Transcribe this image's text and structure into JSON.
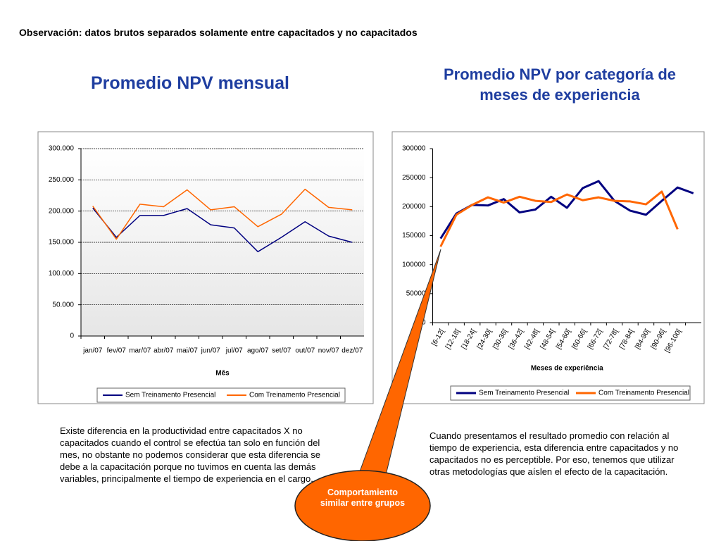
{
  "header": "Observación: datos brutos separados solamente entre capacitados y no capacitados",
  "chart_data": [
    {
      "type": "line",
      "title": "Promedio NPV mensual",
      "categories": [
        "jan/07",
        "fev/07",
        "mar/07",
        "abr/07",
        "mai/07",
        "jun/07",
        "jul/07",
        "ago/07",
        "set/07",
        "out/07",
        "nov/07",
        "dez/07"
      ],
      "series": [
        {
          "name": "Sem Treinamento Presencial",
          "color": "#000080",
          "values": [
            205000,
            158000,
            193000,
            193000,
            204000,
            178000,
            173000,
            135000,
            158000,
            183000,
            160000,
            150000
          ]
        },
        {
          "name": "Com Treinamento Presencial",
          "color": "#ff6600",
          "values": [
            208000,
            155000,
            211000,
            207000,
            234000,
            202000,
            207000,
            175000,
            195000,
            235000,
            206000,
            202000
          ]
        }
      ],
      "xlabel": "Mês",
      "ylim": [
        0,
        300000
      ],
      "yticks": [
        0,
        {
          "value": 50000,
          "label": "50.000"
        },
        {
          "value": 100000,
          "label": "100.000"
        },
        {
          "value": 150000,
          "label": "150.000"
        },
        {
          "value": 200000,
          "label": "200.000"
        },
        {
          "value": 250000,
          "label": "250.000"
        },
        {
          "value": 300000,
          "label": "300.000"
        }
      ],
      "grid": true,
      "legend": "bottom"
    },
    {
      "type": "line",
      "title": "Promedio NPV por categoría de meses de experiencia",
      "categories": [
        "[6-12[",
        "[12-18[",
        "[18-24[",
        "[24-30[",
        "[30-36[",
        "[36-42[",
        "[42-48[",
        "[48-54[",
        "[54-60[",
        "[60-66[",
        "[66-72[",
        "[72-78[",
        "[78-84[",
        "[84-90[",
        "[90-96[",
        "[96-100[",
        null
      ],
      "series": [
        {
          "name": "Sem Treinamento Presencial",
          "color": "#000080",
          "values": [
            145000,
            188000,
            203000,
            202000,
            213000,
            190000,
            195000,
            217000,
            198000,
            232000,
            244000,
            210000,
            193000,
            186000,
            210000,
            233000,
            223000
          ]
        },
        {
          "name": "Com Treinamento Presencial",
          "color": "#ff6600",
          "values": [
            131000,
            186000,
            203000,
            216000,
            207000,
            217000,
            210000,
            208000,
            221000,
            211000,
            216000,
            210000,
            209000,
            204000,
            226000,
            161000,
            null
          ]
        }
      ],
      "xlabel": "Meses de experiência",
      "ylim": [
        0,
        300000
      ],
      "yticks": [
        0,
        50000,
        100000,
        150000,
        200000,
        250000,
        300000
      ],
      "grid": false,
      "legend": "bottom"
    }
  ],
  "notes": [
    "Existe diferencia en la productividad entre capacitados X no capacitados cuando el control se efectúa tan solo en función del mes, no obstante no podemos considerar que esta diferencia se debe a la capacitación porque no tuvimos en cuenta las demás variables, principalmente el tiempo de experiencia en el cargo.",
    "Cuando presentamos el resultado promedio con relación al tiempo de experiencia, esta diferencia entre capacitados y no capacitados no es perceptible. Por eso, tenemos que utilizar otras metodologías que aíslen el efecto de la capacitación."
  ],
  "callout": "Comportamiento similar entre grupos"
}
